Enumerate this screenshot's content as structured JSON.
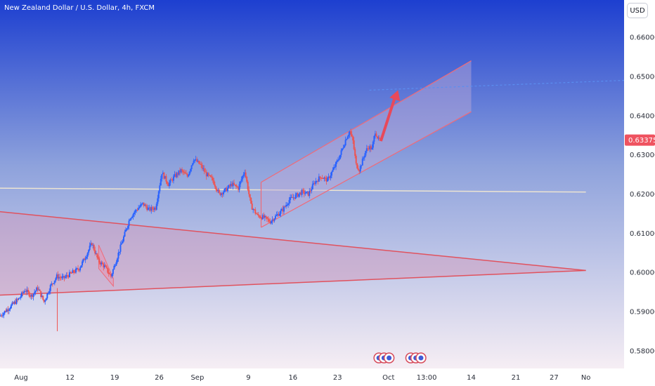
{
  "header": {
    "title": "New Zealand Dollar / U.S. Dollar, 4h, FXCM"
  },
  "currency_badge": "USD",
  "colors": {
    "bg_top": "#1d3fd0",
    "bg_mid": "#8ea2dc",
    "bg_bottom": "#f6eef4",
    "candle_up": "#2962ff",
    "candle_down": "#ef5350",
    "triangle_line": "#e0525e",
    "channel_line": "#f06a78",
    "channel_fill": "rgba(190,170,215,0.45)",
    "triangle_fill": "rgba(210,150,185,0.45)",
    "horizontal_line": "#ece4d2",
    "arrow": "#e8495a",
    "price_tag": "#ef5360",
    "dotted_projection": "#5b8ef0"
  },
  "chart_data": {
    "type": "candlestick",
    "symbol": "NZDUSD",
    "timeframe": "4h",
    "yaxis": {
      "min": 0.5755,
      "max": 0.6695,
      "ticks": [
        0.58,
        0.59,
        0.6,
        0.61,
        0.62,
        0.63,
        0.64,
        0.65,
        0.66
      ],
      "tick_labels": [
        "0.58000",
        "0.59000",
        "0.60000",
        "0.61000",
        "0.62000",
        "0.63000",
        "0.64000",
        "0.65000",
        "0.66000"
      ]
    },
    "xaxis": {
      "range_days": [
        0,
        98
      ],
      "ticks": [
        {
          "label": "Aug",
          "day": 0
        },
        {
          "label": "12",
          "day": 11
        },
        {
          "label": "19",
          "day": 18
        },
        {
          "label": "26",
          "day": 25
        },
        {
          "label": "Sep",
          "day": 31
        },
        {
          "label": "9",
          "day": 39
        },
        {
          "label": "16",
          "day": 46
        },
        {
          "label": "23",
          "day": 53
        },
        {
          "label": "Oct",
          "day": 61
        },
        {
          "label": "13:00",
          "day": 67
        },
        {
          "label": "14",
          "day": 74
        },
        {
          "label": "21",
          "day": 81
        },
        {
          "label": "27",
          "day": 87
        },
        {
          "label": "No",
          "day": 92
        }
      ]
    },
    "last_price": 0.63375,
    "last_price_label": "0.63375",
    "price_path": [
      [
        0.0,
        0.5888
      ],
      [
        1.5,
        0.591
      ],
      [
        3.0,
        0.5932
      ],
      [
        4.0,
        0.5955
      ],
      [
        5.0,
        0.594
      ],
      [
        6.0,
        0.596
      ],
      [
        7.0,
        0.5925
      ],
      [
        8.0,
        0.5965
      ],
      [
        9.0,
        0.599
      ],
      [
        10.0,
        0.5985
      ],
      [
        11.0,
        0.5995
      ],
      [
        12.5,
        0.601
      ],
      [
        13.5,
        0.604
      ],
      [
        14.5,
        0.6075
      ],
      [
        15.5,
        0.603
      ],
      [
        16.5,
        0.6015
      ],
      [
        17.5,
        0.599
      ],
      [
        18.5,
        0.604
      ],
      [
        19.5,
        0.609
      ],
      [
        20.5,
        0.614
      ],
      [
        21.5,
        0.616
      ],
      [
        22.5,
        0.6175
      ],
      [
        23.5,
        0.616
      ],
      [
        24.5,
        0.6165
      ],
      [
        25.5,
        0.6255
      ],
      [
        26.5,
        0.6225
      ],
      [
        27.5,
        0.6245
      ],
      [
        28.5,
        0.626
      ],
      [
        29.5,
        0.6245
      ],
      [
        30.5,
        0.629
      ],
      [
        31.5,
        0.6275
      ],
      [
        32.5,
        0.625
      ],
      [
        33.5,
        0.6235
      ],
      [
        34.5,
        0.62
      ],
      [
        35.5,
        0.621
      ],
      [
        36.5,
        0.6225
      ],
      [
        37.5,
        0.6215
      ],
      [
        38.5,
        0.626
      ],
      [
        39.5,
        0.617
      ],
      [
        40.5,
        0.6145
      ],
      [
        41.5,
        0.614
      ],
      [
        42.5,
        0.613
      ],
      [
        43.5,
        0.6145
      ],
      [
        44.5,
        0.616
      ],
      [
        45.5,
        0.6185
      ],
      [
        46.5,
        0.6195
      ],
      [
        47.5,
        0.6205
      ],
      [
        48.5,
        0.62
      ],
      [
        49.5,
        0.623
      ],
      [
        50.5,
        0.6245
      ],
      [
        51.5,
        0.6235
      ],
      [
        52.5,
        0.6265
      ],
      [
        53.5,
        0.63
      ],
      [
        54.5,
        0.6345
      ],
      [
        55.0,
        0.636
      ],
      [
        55.5,
        0.6335
      ],
      [
        56.0,
        0.6275
      ],
      [
        56.5,
        0.6262
      ],
      [
        57.0,
        0.6285
      ],
      [
        57.5,
        0.631
      ],
      [
        58.0,
        0.632
      ],
      [
        58.5,
        0.6315
      ],
      [
        59.0,
        0.636
      ],
      [
        59.5,
        0.6338
      ]
    ],
    "drawings": {
      "triangle": {
        "upper": [
          [
            0.0,
            0.6155
          ],
          [
            92.0,
            0.6005
          ]
        ],
        "lower": [
          [
            0.0,
            0.5942
          ],
          [
            92.0,
            0.6005
          ]
        ]
      },
      "horizontal_support": [
        [
          0.0,
          0.6215
        ],
        [
          92.0,
          0.6205
        ]
      ],
      "channel": {
        "upper": [
          [
            41.0,
            0.623
          ],
          [
            74.0,
            0.654
          ]
        ],
        "lower": [
          [
            41.0,
            0.6115
          ],
          [
            74.0,
            0.641
          ]
        ]
      },
      "small_pennant": {
        "upper": [
          [
            15.5,
            0.607
          ],
          [
            17.8,
            0.5985
          ]
        ],
        "lower": [
          [
            15.5,
            0.601
          ],
          [
            17.8,
            0.5965
          ]
        ]
      },
      "arrow": {
        "from": [
          59.8,
          0.6335
        ],
        "to": [
          62.5,
          0.6465
        ]
      },
      "projection": [
        [
          58.0,
          0.6465
        ],
        [
          98.0,
          0.649
        ]
      ]
    },
    "event_icons": [
      {
        "day": 59.5
      },
      {
        "day": 60.3
      },
      {
        "day": 61.1
      },
      {
        "day": 64.5
      },
      {
        "day": 65.3
      },
      {
        "day": 66.1
      }
    ]
  }
}
